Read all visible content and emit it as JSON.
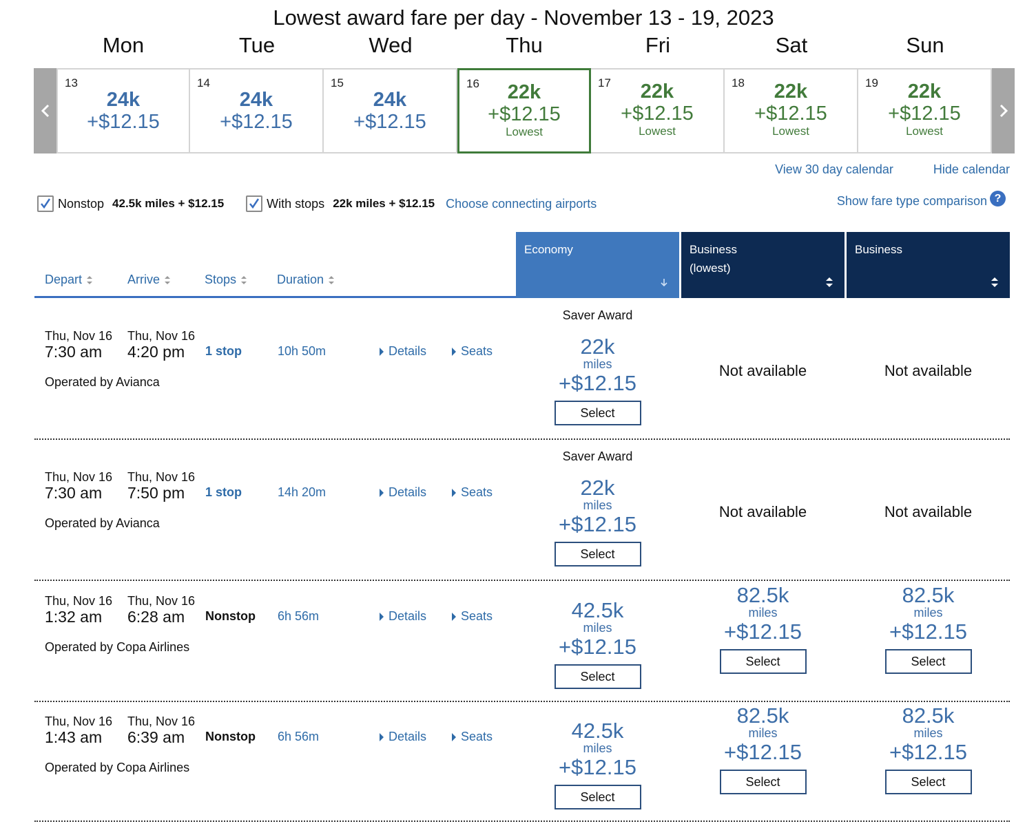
{
  "title": "Lowest award fare per day - November 13 - 19, 2023",
  "weekdays": [
    "Mon",
    "Tue",
    "Wed",
    "Thu",
    "Fri",
    "Sat",
    "Sun"
  ],
  "calendar": {
    "days": [
      {
        "num": "13",
        "miles": "24k",
        "tax": "+$12.15",
        "lowest": ""
      },
      {
        "num": "14",
        "miles": "24k",
        "tax": "+$12.15",
        "lowest": ""
      },
      {
        "num": "15",
        "miles": "24k",
        "tax": "+$12.15",
        "lowest": ""
      },
      {
        "num": "16",
        "miles": "22k",
        "tax": "+$12.15",
        "lowest": "Lowest"
      },
      {
        "num": "17",
        "miles": "22k",
        "tax": "+$12.15",
        "lowest": "Lowest"
      },
      {
        "num": "18",
        "miles": "22k",
        "tax": "+$12.15",
        "lowest": "Lowest"
      },
      {
        "num": "19",
        "miles": "22k",
        "tax": "+$12.15",
        "lowest": "Lowest"
      }
    ],
    "selected_day": "16",
    "view_30_day": "View 30 day calendar",
    "hide": "Hide calendar"
  },
  "filters": {
    "nonstop_label": "Nonstop",
    "nonstop_value": "42.5k miles + $12.15",
    "stops_label": "With stops",
    "stops_value": "22k miles + $12.15",
    "connecting": "Choose connecting airports",
    "compare": "Show fare type comparison",
    "help": "?"
  },
  "sort": {
    "depart": "Depart",
    "arrive": "Arrive",
    "stops": "Stops",
    "duration": "Duration"
  },
  "columns": {
    "economy": "Economy",
    "business_lowest_1": "Business",
    "business_lowest_2": "(lowest)",
    "business": "Business"
  },
  "flights": [
    {
      "dep_date": "Thu, Nov 16",
      "dep_time": "7:30 am",
      "arr_date": "Thu, Nov 16",
      "arr_time": "4:20 pm",
      "stops": "1 stop",
      "duration": "10h 50m",
      "details": "Details",
      "seats": "Seats",
      "operator": "Operated by Avianca",
      "economy": {
        "saver": "Saver Award",
        "miles": "22k",
        "unit": "miles",
        "tax": "+$12.15",
        "select": "Select"
      },
      "business_lowest": {
        "na": "Not available"
      },
      "business": {
        "na": "Not available"
      }
    },
    {
      "dep_date": "Thu, Nov 16",
      "dep_time": "7:30 am",
      "arr_date": "Thu, Nov 16",
      "arr_time": "7:50 pm",
      "stops": "1 stop",
      "duration": "14h 20m",
      "details": "Details",
      "seats": "Seats",
      "operator": "Operated by Avianca",
      "economy": {
        "saver": "Saver Award",
        "miles": "22k",
        "unit": "miles",
        "tax": "+$12.15",
        "select": "Select"
      },
      "business_lowest": {
        "na": "Not available"
      },
      "business": {
        "na": "Not available"
      }
    },
    {
      "dep_date": "Thu, Nov 16",
      "dep_time": "1:32 am",
      "arr_date": "Thu, Nov 16",
      "arr_time": "6:28 am",
      "stops": "Nonstop",
      "duration": "6h 56m",
      "details": "Details",
      "seats": "Seats",
      "operator": "Operated by Copa Airlines",
      "economy": {
        "saver": "",
        "miles": "42.5k",
        "unit": "miles",
        "tax": "+$12.15",
        "select": "Select"
      },
      "business_lowest": {
        "miles": "82.5k",
        "unit": "miles",
        "tax": "+$12.15",
        "select": "Select"
      },
      "business": {
        "miles": "82.5k",
        "unit": "miles",
        "tax": "+$12.15",
        "select": "Select"
      }
    },
    {
      "dep_date": "Thu, Nov 16",
      "dep_time": "1:43 am",
      "arr_date": "Thu, Nov 16",
      "arr_time": "6:39 am",
      "stops": "Nonstop",
      "duration": "6h 56m",
      "details": "Details",
      "seats": "Seats",
      "operator": "Operated by Copa Airlines",
      "economy": {
        "saver": "",
        "miles": "42.5k",
        "unit": "miles",
        "tax": "+$12.15",
        "select": "Select"
      },
      "business_lowest": {
        "miles": "82.5k",
        "unit": "miles",
        "tax": "+$12.15",
        "select": "Select"
      },
      "business": {
        "miles": "82.5k",
        "unit": "miles",
        "tax": "+$12.15",
        "select": "Select"
      }
    }
  ],
  "colors": {
    "blue_text": "#3d6ea8",
    "green_text": "#427b3b",
    "economy_header": "#3f78bd",
    "business_header": "#0d2a52",
    "link": "#2e6ba8"
  }
}
